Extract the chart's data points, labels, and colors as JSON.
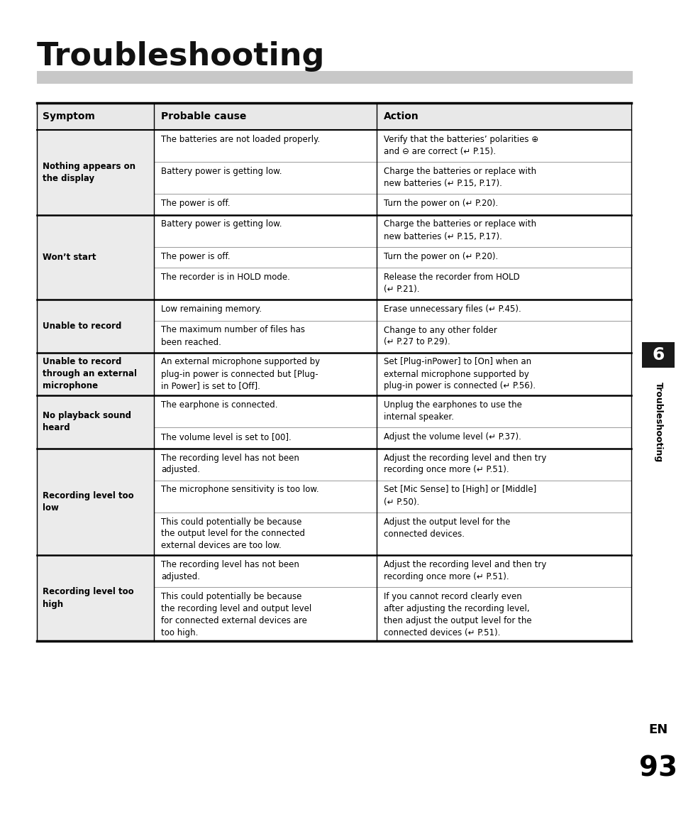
{
  "title": "Troubleshooting",
  "bg_color": "#ffffff",
  "header_bar_color": "#c8c8c8",
  "table_header_bg": "#e8e8e8",
  "table_row_bg_light": "#ebebeb",
  "table_row_bg_white": "#ffffff",
  "headers": [
    "Symptom",
    "Probable cause",
    "Action"
  ],
  "rows": [
    {
      "symptom": "Nothing appears on\nthe display",
      "causes": [
        "The batteries are not loaded properly.",
        "Battery power is getting low.",
        "The power is off."
      ],
      "actions": [
        "Verify that the batteries’ polarities ⊕\nand ⊖ are correct (↵ P.15).",
        "Charge the batteries or replace with\nnew batteries (↵ P.15, P.17).",
        "Turn the power on (↵ P.20)."
      ]
    },
    {
      "symptom": "Won’t start",
      "causes": [
        "Battery power is getting low.",
        "The power is off.",
        "The recorder is in HOLD mode."
      ],
      "actions": [
        "Charge the batteries or replace with\nnew batteries (↵ P.15, P.17).",
        "Turn the power on (↵ P.20).",
        "Release the recorder from HOLD\n(↵ P.21)."
      ]
    },
    {
      "symptom": "Unable to record",
      "causes": [
        "Low remaining memory.",
        "The maximum number of files has\nbeen reached."
      ],
      "actions": [
        "Erase unnecessary files (↵ P.45).",
        "Change to any other folder\n(↵ P.27 to P.29)."
      ]
    },
    {
      "symptom": "Unable to record\nthrough an external\nmicrophone",
      "causes": [
        "An external microphone supported by\nplug-in power is connected but [Plug-\nin Power] is set to [Off]."
      ],
      "actions": [
        "Set [Plug-inPower] to [On] when an\nexternal microphone supported by\nplug-in power is connected (↵ P.56)."
      ]
    },
    {
      "symptom": "No playback sound\nheard",
      "causes": [
        "The earphone is connected.",
        "The volume level is set to [00]."
      ],
      "actions": [
        "Unplug the earphones to use the\ninternal speaker.",
        "Adjust the volume level (↵ P.37)."
      ]
    },
    {
      "symptom": "Recording level too\nlow",
      "causes": [
        "The recording level has not been\nadjusted.",
        "The microphone sensitivity is too low.",
        "This could potentially be because\nthe output level for the connected\nexternal devices are too low."
      ],
      "actions": [
        "Adjust the recording level and then try\nrecording once more (↵ P.51).",
        "Set [Mic Sense] to [High] or [Middle]\n(↵ P.50).",
        "Adjust the output level for the\nconnected devices."
      ]
    },
    {
      "symptom": "Recording level too\nhigh",
      "causes": [
        "The recording level has not been\nadjusted.",
        "This could potentially be because\nthe recording level and output level\nfor connected external devices are\ntoo high."
      ],
      "actions": [
        "Adjust the recording level and then try\nrecording once more (↵ P.51).",
        "If you cannot record clearly even\nafter adjusting the recording level,\nthen adjust the output level for the\nconnected devices (↵ P.51)."
      ]
    }
  ],
  "side_tab_num": "6",
  "side_tab_text": "Troubleshooting",
  "page_label_en": "EN",
  "page_num": "93"
}
